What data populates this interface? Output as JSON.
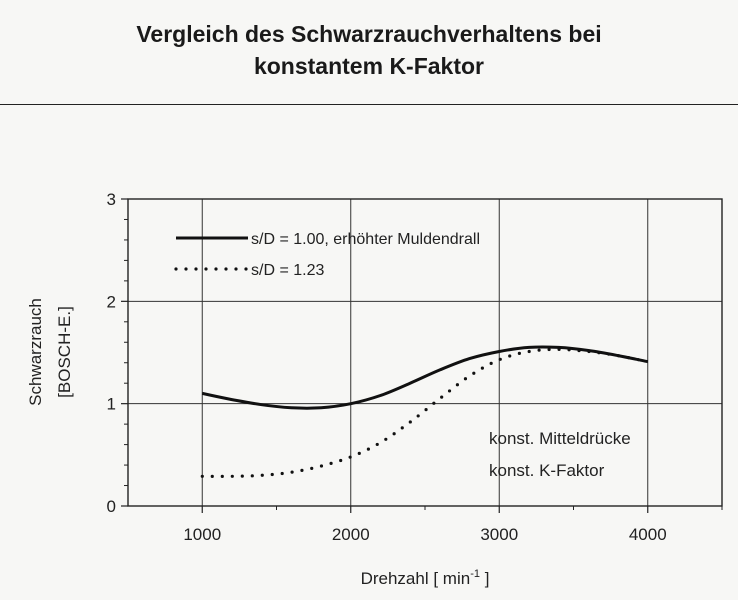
{
  "title_line1": "Vergleich des Schwarzrauchverhaltens bei",
  "title_line2": "konstantem K-Faktor",
  "chart_data": {
    "type": "line",
    "xlabel_main": "Drehzahl [ min",
    "xlabel_sup": "-1",
    "xlabel_close": " ]",
    "ylabel_line1": "Schwarzrauch",
    "ylabel_line2": "[BOSCH-E.]",
    "xlim": [
      500,
      4500
    ],
    "ylim": [
      0,
      3
    ],
    "x_ticks": [
      1000,
      2000,
      3000,
      4000
    ],
    "y_ticks": [
      0,
      1,
      2,
      3
    ],
    "grid": true,
    "legend_position": "top-left",
    "annotations": [
      "konst. Mitteldrücke",
      "konst. K-Faktor"
    ],
    "series": [
      {
        "name": "s/D = 1.00, erhöhter Muldendrall",
        "style": "solid",
        "x": [
          1000,
          1200,
          1400,
          1600,
          1800,
          2000,
          2200,
          2400,
          2600,
          2800,
          3000,
          3200,
          3400,
          3600,
          3800,
          4000
        ],
        "y": [
          1.1,
          1.04,
          0.99,
          0.96,
          0.96,
          1.0,
          1.08,
          1.2,
          1.33,
          1.44,
          1.51,
          1.55,
          1.55,
          1.52,
          1.47,
          1.41
        ]
      },
      {
        "name": "s/D = 1.23",
        "style": "dotted",
        "x": [
          1000,
          1200,
          1400,
          1600,
          1800,
          2000,
          2200,
          2400,
          2600,
          2800,
          3000,
          3200,
          3400,
          3600,
          3800,
          4000
        ],
        "y": [
          0.29,
          0.29,
          0.3,
          0.33,
          0.39,
          0.48,
          0.62,
          0.82,
          1.05,
          1.27,
          1.43,
          1.51,
          1.53,
          1.51,
          1.47,
          1.41
        ]
      }
    ]
  }
}
